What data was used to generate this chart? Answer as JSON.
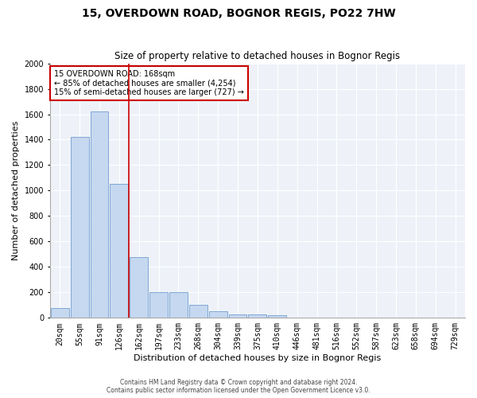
{
  "title": "15, OVERDOWN ROAD, BOGNOR REGIS, PO22 7HW",
  "subtitle": "Size of property relative to detached houses in Bognor Regis",
  "xlabel": "Distribution of detached houses by size in Bognor Regis",
  "ylabel": "Number of detached properties",
  "categories": [
    "20sqm",
    "55sqm",
    "91sqm",
    "126sqm",
    "162sqm",
    "197sqm",
    "233sqm",
    "268sqm",
    "304sqm",
    "339sqm",
    "375sqm",
    "410sqm",
    "446sqm",
    "481sqm",
    "516sqm",
    "552sqm",
    "587sqm",
    "623sqm",
    "658sqm",
    "694sqm",
    "729sqm"
  ],
  "values": [
    80,
    1420,
    1620,
    1050,
    480,
    200,
    200,
    100,
    50,
    30,
    25,
    20,
    5,
    2,
    1,
    1,
    0,
    0,
    0,
    0,
    0
  ],
  "bar_color": "#c5d8f0",
  "bar_edge_color": "#5b8fc9",
  "vline_x_index": 4,
  "annotation_lines": [
    "15 OVERDOWN ROAD: 168sqm",
    "← 85% of detached houses are smaller (4,254)",
    "15% of semi-detached houses are larger (727) →"
  ],
  "annotation_box_color": "#ffffff",
  "annotation_box_edge": "#cc0000",
  "vline_color": "#cc0000",
  "ylim": [
    0,
    2000
  ],
  "yticks": [
    0,
    200,
    400,
    600,
    800,
    1000,
    1200,
    1400,
    1600,
    1800,
    2000
  ],
  "title_fontsize": 10,
  "subtitle_fontsize": 8.5,
  "xlabel_fontsize": 8,
  "ylabel_fontsize": 8,
  "tick_fontsize": 7,
  "ann_fontsize": 7,
  "footer1": "Contains HM Land Registry data © Crown copyright and database right 2024.",
  "footer2": "Contains public sector information licensed under the Open Government Licence v3.0.",
  "bg_color": "#ffffff",
  "plot_bg_color": "#eef2f8",
  "grid_color": "#ffffff"
}
